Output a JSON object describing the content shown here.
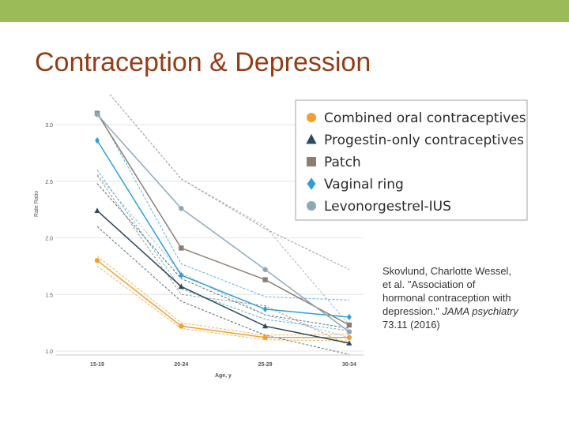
{
  "slide": {
    "title": "Contraception & Depression",
    "bar_color": "#9bbb59",
    "title_color": "#953c17"
  },
  "citation": {
    "text_before": "Skovlund, Charlotte Wessel, et al. \"Association of hormonal contraception with depression.\" ",
    "journal": "JAMA psychiatry",
    "text_after": " 73.11 (2016)"
  },
  "chart_data": {
    "type": "line",
    "xlabel": "Age, y",
    "ylabel": "Rate Ratio",
    "categories": [
      "15-19",
      "20-24",
      "25-29",
      "30-34"
    ],
    "yticks": [
      "1.0",
      "1.5",
      "2.0",
      "2.5",
      "3.0"
    ],
    "ylim": [
      1.0,
      3.2
    ],
    "grid": true,
    "legend_position": "top-right",
    "series": [
      {
        "name": "Combined oral contraceptives",
        "values": [
          1.8,
          1.22,
          1.12,
          1.12
        ],
        "ci_low": [
          1.75,
          1.2,
          1.1,
          1.09
        ],
        "ci_high": [
          1.84,
          1.25,
          1.14,
          1.15
        ],
        "color": "#f0a030",
        "marker": "circle"
      },
      {
        "name": "Progestin-only contraceptives",
        "values": [
          2.24,
          1.57,
          1.22,
          1.07
        ],
        "ci_low": [
          2.1,
          1.44,
          1.14,
          0.97
        ],
        "ci_high": [
          2.48,
          1.64,
          1.32,
          1.2
        ],
        "color": "#2f4a5c",
        "marker": "triangle"
      },
      {
        "name": "Patch",
        "values": [
          3.1,
          1.91,
          1.63,
          1.23
        ],
        "ci_low": [
          2.55,
          1.5,
          1.4,
          1.05
        ],
        "ci_high": [
          3.4,
          2.52,
          2.08,
          1.72
        ],
        "color": "#8c7e72",
        "marker": "square"
      },
      {
        "name": "Vaginal ring",
        "values": [
          2.86,
          1.67,
          1.37,
          1.3
        ],
        "ci_low": [
          2.6,
          1.55,
          1.28,
          1.18
        ],
        "ci_high": [
          3.12,
          1.77,
          1.48,
          1.45
        ],
        "color": "#2e9fd4",
        "marker": "diamond"
      },
      {
        "name": "Levonorgestrel-IUS",
        "values": [
          3.09,
          2.26,
          1.72,
          1.17
        ],
        "ci_low": [
          2.56,
          1.69,
          1.32,
          1.12
        ],
        "ci_high": [
          3.4,
          2.52,
          2.1,
          1.23
        ],
        "color": "#8fa8b8",
        "marker": "circle"
      }
    ]
  }
}
